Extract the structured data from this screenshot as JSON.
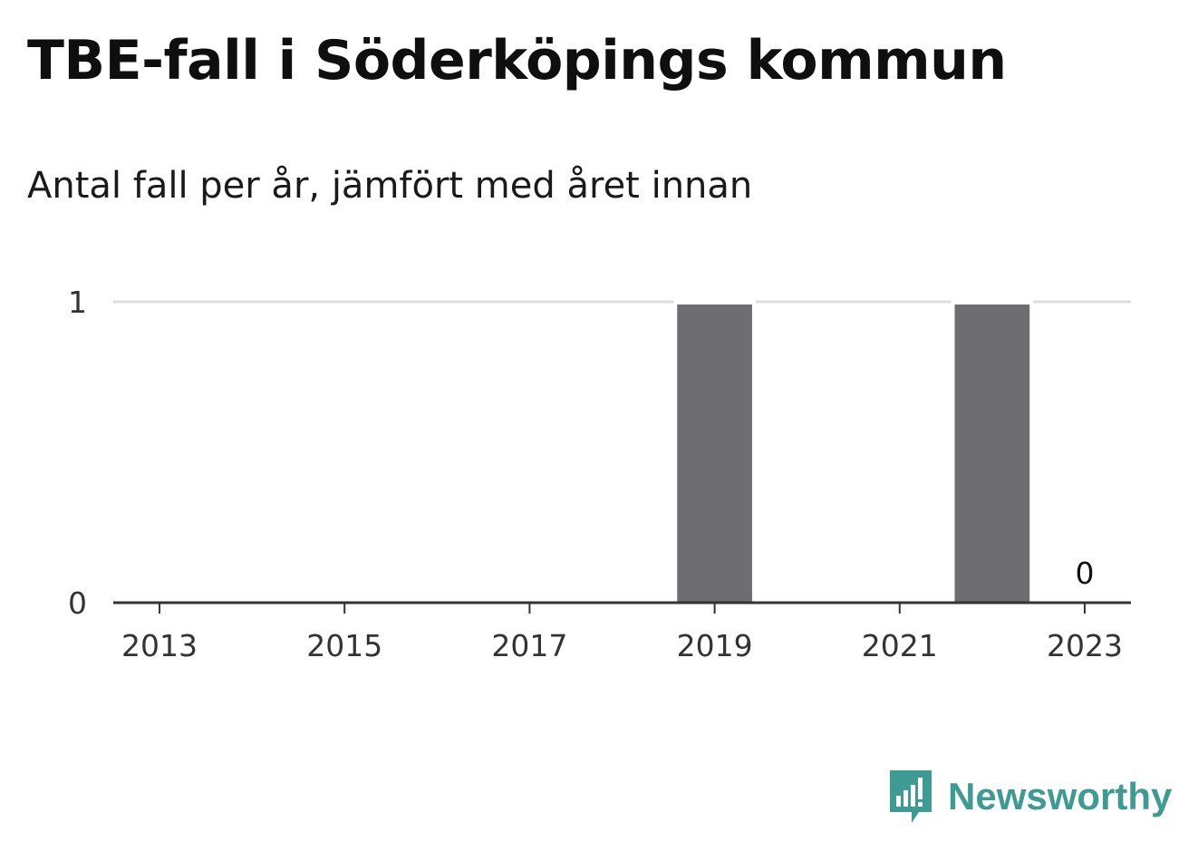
{
  "chart_data": {
    "type": "bar",
    "title": "TBE-fall i Söderköpings kommun",
    "subtitle": "Antal fall per år, jämfört med året innan",
    "x": [
      2013,
      2014,
      2015,
      2016,
      2017,
      2018,
      2019,
      2020,
      2021,
      2022,
      2023
    ],
    "values": [
      0,
      0,
      0,
      0,
      0,
      0,
      1,
      0,
      0,
      1,
      0
    ],
    "x_ticks": [
      "2013",
      "2015",
      "2017",
      "2019",
      "2021",
      "2023"
    ],
    "y_ticks": [
      0,
      1
    ],
    "ylim": [
      0,
      1
    ],
    "xlim": [
      2012.5,
      2023.5
    ],
    "grid": true,
    "bar_color": "#6e6d72",
    "annotations": [
      {
        "x": 2023,
        "label": "0"
      }
    ]
  },
  "brand": {
    "name": "Newsworthy",
    "logo_icon": "newsworthy-logo-icon",
    "color": "#3d9b94"
  }
}
